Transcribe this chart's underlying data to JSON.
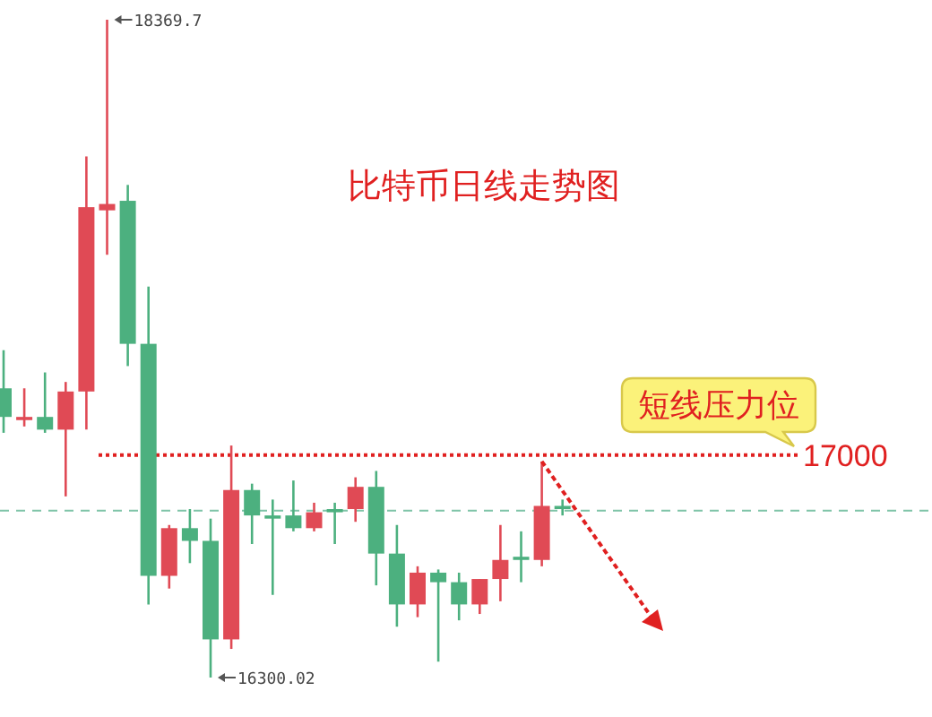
{
  "chart_data": {
    "type": "candlestick",
    "title": "比特币日线走势图",
    "categories": [
      null,
      null,
      null,
      null,
      null,
      null,
      null,
      null,
      null,
      null,
      null,
      null,
      null,
      null,
      null,
      null,
      null,
      null,
      null,
      null,
      null,
      null,
      null,
      null,
      null,
      null,
      null,
      null
    ],
    "ohlc": [
      [
        17210,
        17330,
        17070,
        17120
      ],
      [
        17110,
        17210,
        17090,
        17120
      ],
      [
        17120,
        17260,
        17070,
        17080
      ],
      [
        17080,
        17230,
        16870,
        17200
      ],
      [
        17200,
        17940,
        17080,
        17780
      ],
      [
        17770,
        18369.7,
        17630,
        17790
      ],
      [
        17800,
        17850,
        17280,
        17350
      ],
      [
        17350,
        17530,
        16530,
        16620
      ],
      [
        16620,
        16780,
        16580,
        16770
      ],
      [
        16770,
        16830,
        16660,
        16730
      ],
      [
        16730,
        16800,
        16300.02,
        16420
      ],
      [
        16420,
        17030,
        16390,
        16890
      ],
      [
        16890,
        16910,
        16720,
        16810
      ],
      [
        16810,
        16860,
        16560,
        16800
      ],
      [
        16810,
        16920,
        16760,
        16770
      ],
      [
        16770,
        16850,
        16760,
        16820
      ],
      [
        16830,
        16850,
        16720,
        16820
      ],
      [
        16830,
        16930,
        16790,
        16900
      ],
      [
        16900,
        16950,
        16590,
        16690
      ],
      [
        16690,
        16780,
        16460,
        16530
      ],
      [
        16530,
        16650,
        16490,
        16630
      ],
      [
        16630,
        16640,
        16350,
        16600
      ],
      [
        16600,
        16630,
        16480,
        16530
      ],
      [
        16530,
        16610,
        16500,
        16610
      ],
      [
        16610,
        16780,
        16540,
        16670
      ],
      [
        16680,
        16760,
        16600,
        16670
      ],
      [
        16670,
        16980,
        16650,
        16840
      ],
      [
        16840,
        16860,
        16810,
        16830
      ]
    ],
    "colors": [
      "#4cb07f",
      "#e04a55",
      "#4cb07f",
      "#e04a55",
      "#e04a55",
      "#e04a55",
      "#4cb07f",
      "#4cb07f",
      "#e04a55",
      "#4cb07f",
      "#4cb07f",
      "#e04a55",
      "#4cb07f",
      "#4cb07f",
      "#4cb07f",
      "#e04a55",
      "#4cb07f",
      "#e04a55",
      "#4cb07f",
      "#4cb07f",
      "#e04a55",
      "#4cb07f",
      "#4cb07f",
      "#e04a55",
      "#e04a55",
      "#4cb07f",
      "#e04a55",
      "#4cb07f"
    ],
    "ref_lines": [
      {
        "axis": "y",
        "value": 17000,
        "label": "17000",
        "color": "#e02020",
        "line_style": "dotted"
      },
      {
        "axis": "y",
        "value": 16825,
        "color": "#7fc4a8",
        "line_style": "dashed"
      }
    ],
    "annotations": [
      "18369.7",
      "16300.02",
      "短线压力位"
    ]
  }
}
